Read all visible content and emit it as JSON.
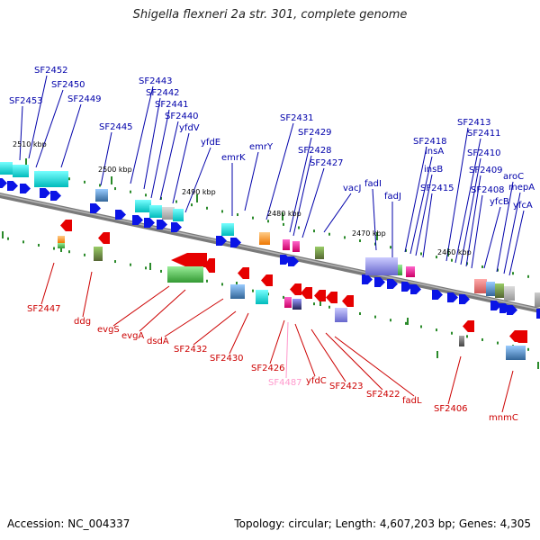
{
  "title": "Shigella flexneri 2a str. 301, complete genome",
  "footer": {
    "accession": "Accession: NC_004337",
    "stats": "Topology: circular; Length: 4,607,203 bp; Genes: 4,305"
  },
  "colors": {
    "backbone": "#8c8c8c",
    "forward_label": "#0000aa",
    "reverse_label": "#cc0000",
    "pseudo_label": "#ff99cc",
    "forward_arrow": "#0a14e6",
    "reverse_arrow": "#e60000",
    "tick": "#2a8a2a"
  },
  "kbp_labels": [
    "2510 kbp",
    "2500 kbp",
    "2490 kbp",
    "2480 kbp",
    "2470 kbp",
    "2460 kbp"
  ],
  "forward_labels": [
    "SF2453",
    "SF2452",
    "SF2450",
    "SF2449",
    "SF2445",
    "SF2443",
    "SF2442",
    "SF2441",
    "SF2440",
    "yfdV",
    "yfdE",
    "emrK",
    "emrY",
    "SF2431",
    "SF2429",
    "SF2428",
    "SF2427",
    "vacJ",
    "fadI",
    "fadJ",
    "SF2418",
    "insA",
    "insB",
    "SF2415",
    "SF2413",
    "SF2411",
    "SF2410",
    "SF2409",
    "SF2408",
    "yfcB",
    "aroC",
    "mepA",
    "yfcA"
  ],
  "reverse_labels": [
    "SF2447",
    "ddg",
    "evgS",
    "evgA",
    "dsdA",
    "SF2432",
    "SF2430",
    "SF2426",
    "SF4487",
    "yfdC",
    "SF2423",
    "SF2422",
    "fadL",
    "SF2406",
    "mnmC"
  ]
}
